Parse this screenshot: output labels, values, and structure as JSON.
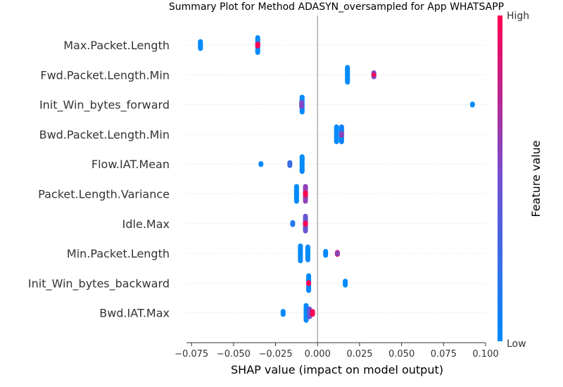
{
  "chart_data": {
    "type": "scatter",
    "title": "Summary Plot for Method ADASYN_oversampled for App WHATSAPP",
    "xlabel": "SHAP value (impact on model output)",
    "xlim": [
      -0.078,
      0.1
    ],
    "xticks": [
      -0.075,
      -0.05,
      -0.025,
      0.0,
      0.025,
      0.05,
      0.075,
      0.1
    ],
    "xtick_labels": [
      "−0.075",
      "−0.050",
      "−0.025",
      "0.000",
      "0.025",
      "0.050",
      "0.075",
      "0.100"
    ],
    "features": [
      "Max.Packet.Length",
      "Fwd.Packet.Length.Min",
      "Init_Win_bytes_forward",
      "Bwd.Packet.Length.Min",
      "Flow.IAT.Mean",
      "Packet.Length.Variance",
      "Idle.Max",
      "Min.Packet.Length",
      "Init_Win_bytes_backward",
      "Bwd.IAT.Max"
    ],
    "clusters": [
      [
        {
          "x": -0.0697,
          "w": 0.6,
          "c": 0.0
        },
        {
          "x": -0.0356,
          "w": 1.0,
          "c": 0.0
        },
        {
          "x": -0.0356,
          "w": 0.35,
          "c": 1.0
        }
      ],
      [
        {
          "x": 0.0178,
          "w": 1.0,
          "c": 0.0
        },
        {
          "x": 0.0335,
          "w": 0.45,
          "c": 0.55
        },
        {
          "x": 0.0335,
          "w": 0.2,
          "c": 0.95
        }
      ],
      [
        {
          "x": -0.0092,
          "w": 1.0,
          "c": 0.0
        },
        {
          "x": -0.0095,
          "w": 0.45,
          "c": 0.55
        },
        {
          "x": 0.0922,
          "w": 0.3,
          "c": 0.0
        }
      ],
      [
        {
          "x": 0.0113,
          "w": 1.0,
          "c": 0.0
        },
        {
          "x": 0.0143,
          "w": 1.0,
          "c": 0.05
        },
        {
          "x": 0.0143,
          "w": 0.3,
          "c": 1.0
        },
        {
          "x": 0.0143,
          "w": 0.25,
          "c": 0.55
        }
      ],
      [
        {
          "x": -0.0337,
          "w": 0.3,
          "c": 0.0
        },
        {
          "x": -0.0165,
          "w": 0.4,
          "c": 0.25
        },
        {
          "x": -0.0092,
          "w": 1.0,
          "c": 0.0
        }
      ],
      [
        {
          "x": -0.0125,
          "w": 1.0,
          "c": 0.0
        },
        {
          "x": -0.0072,
          "w": 1.0,
          "c": 0.6
        },
        {
          "x": -0.0072,
          "w": 0.35,
          "c": 1.0
        }
      ],
      [
        {
          "x": -0.0148,
          "w": 0.35,
          "c": 0.15
        },
        {
          "x": -0.0072,
          "w": 1.0,
          "c": 0.45
        },
        {
          "x": -0.0072,
          "w": 0.3,
          "c": 1.0
        }
      ],
      [
        {
          "x": -0.0102,
          "w": 1.0,
          "c": 0.0
        },
        {
          "x": -0.0058,
          "w": 0.9,
          "c": 0.0
        },
        {
          "x": 0.0048,
          "w": 0.45,
          "c": 0.0
        },
        {
          "x": 0.0118,
          "w": 0.35,
          "c": 1.0
        },
        {
          "x": 0.0118,
          "w": 0.3,
          "c": 0.6
        }
      ],
      [
        {
          "x": -0.0053,
          "w": 1.0,
          "c": 0.0
        },
        {
          "x": -0.0053,
          "w": 0.3,
          "c": 1.0
        },
        {
          "x": 0.0165,
          "w": 0.45,
          "c": 0.0
        }
      ],
      [
        {
          "x": -0.0205,
          "w": 0.4,
          "c": 0.0
        },
        {
          "x": -0.0068,
          "w": 1.0,
          "c": 0.0
        },
        {
          "x": -0.0048,
          "w": 0.65,
          "c": 0.45
        },
        {
          "x": -0.003,
          "w": 0.4,
          "c": 1.0
        }
      ]
    ],
    "colorbar": {
      "label": "Feature value",
      "high_label": "High",
      "low_label": "Low",
      "colors": [
        "#008afb",
        "#7350d1",
        "#ff0051"
      ]
    }
  }
}
